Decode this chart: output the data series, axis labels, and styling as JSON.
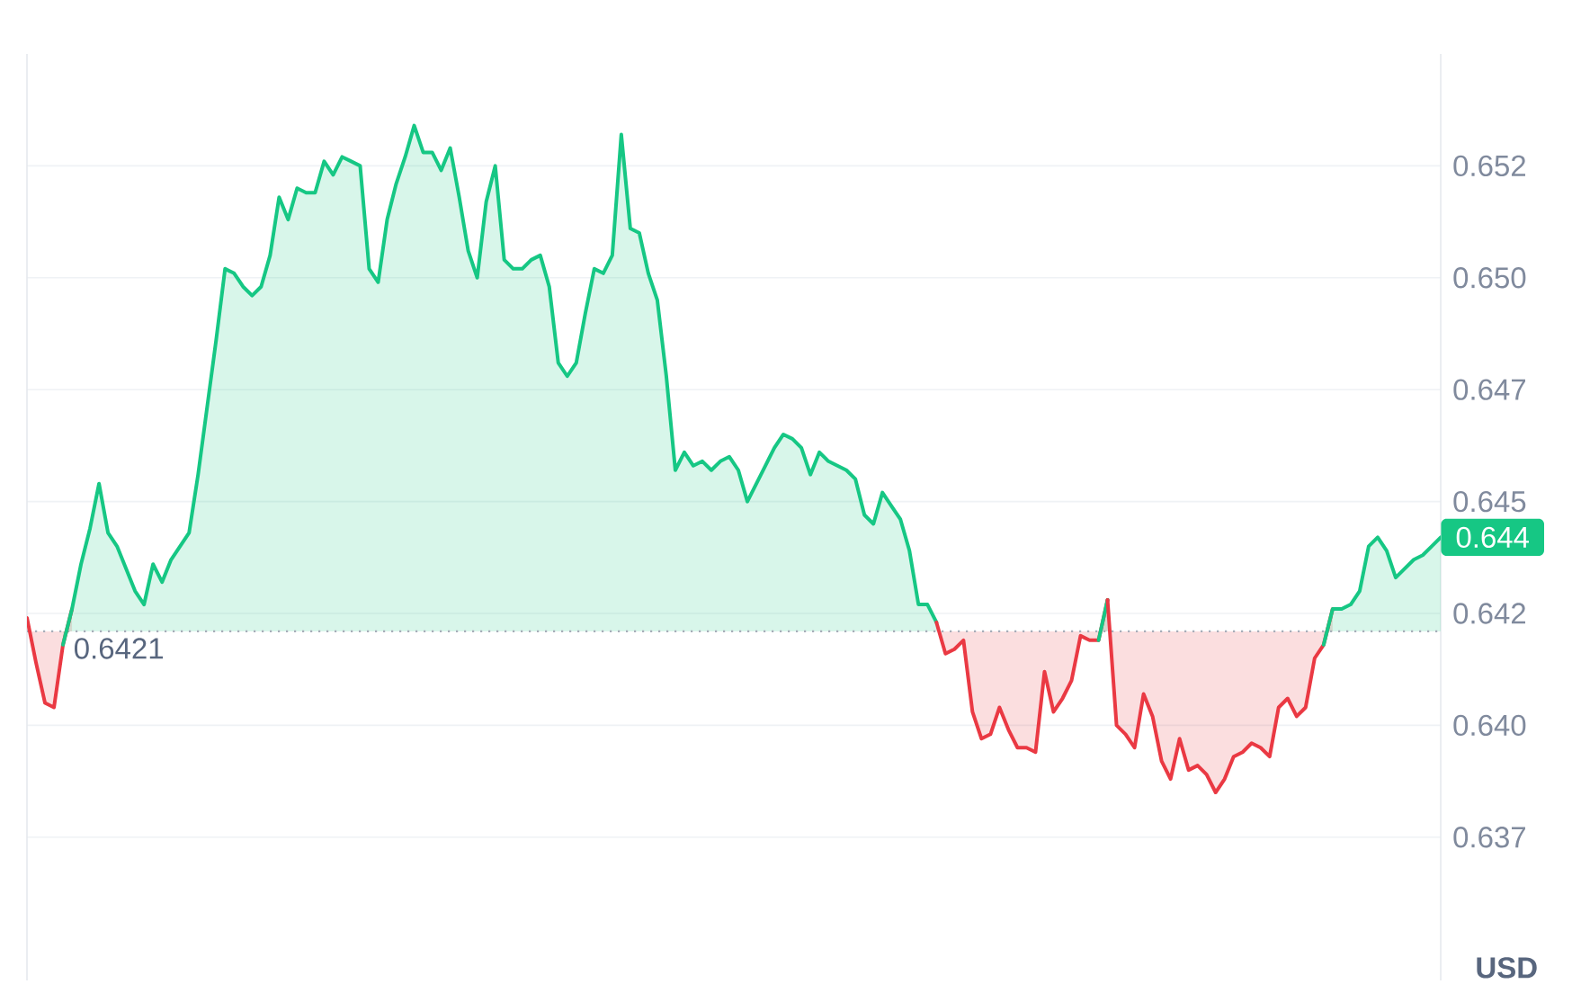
{
  "chart_data": {
    "type": "area",
    "categories": [
      null,
      null,
      null,
      null,
      null,
      null,
      null,
      null,
      null,
      null,
      null,
      null,
      null,
      null,
      null,
      null,
      null,
      null,
      null,
      null,
      null,
      null,
      null,
      null,
      null,
      null,
      null,
      null,
      null,
      null,
      null,
      null,
      null,
      null,
      null,
      null,
      null,
      null,
      null,
      null,
      null,
      null,
      null,
      null,
      null,
      null,
      null,
      null,
      null,
      null,
      null,
      null,
      null,
      null,
      null,
      null,
      null,
      null,
      null,
      null,
      null,
      null,
      null,
      null,
      null,
      null,
      null,
      null,
      null,
      null,
      null,
      null,
      null,
      null,
      null,
      null,
      null,
      null,
      null,
      null,
      null,
      null,
      null,
      null,
      null,
      null,
      null,
      null,
      null,
      null,
      null,
      null,
      null,
      null,
      null,
      null,
      null,
      null,
      null,
      null,
      null,
      null,
      null,
      null,
      null,
      null,
      null,
      null,
      null,
      null,
      null,
      null,
      null,
      null,
      null,
      null,
      null,
      null,
      null,
      null,
      null,
      null,
      null,
      null,
      null,
      null,
      null,
      null,
      null,
      null,
      null,
      null,
      null,
      null,
      null,
      null,
      null,
      null,
      null,
      null,
      null,
      null,
      null,
      null,
      null,
      null,
      null,
      null,
      null,
      null,
      null,
      null,
      null,
      null,
      null,
      null,
      null,
      null
    ],
    "series": [
      {
        "color": "#ea3943",
        "values": [
          0.6424,
          0.6414,
          0.6405,
          0.6404,
          0.6418,
          0.6426,
          null,
          null,
          null,
          null,
          null,
          null,
          null,
          null,
          null,
          null,
          null,
          null,
          null,
          null,
          null,
          null,
          null,
          null,
          null,
          null,
          null,
          null,
          null,
          null,
          null,
          null,
          null,
          null,
          null,
          null,
          null,
          null,
          null,
          null,
          null,
          null,
          null,
          null,
          null,
          null,
          null,
          null,
          null,
          null,
          null,
          null,
          null,
          null,
          null,
          null,
          null,
          null,
          null,
          null,
          null,
          null,
          null,
          null,
          null,
          null,
          null,
          null,
          null,
          null,
          null,
          null,
          null,
          null,
          null,
          null,
          null,
          null,
          null,
          null,
          null,
          null,
          null,
          null,
          null,
          null,
          null,
          null,
          null,
          null,
          null,
          null,
          null,
          null,
          null,
          null,
          null,
          null,
          null,
          null,
          null,
          null,
          null,
          null,
          null,
          null,
          null,
          null,
          null,
          null,
          null,
          null,
          null,
          null,
          null,
          null,
          null,
          null,
          null,
          null,
          null,
          null,
          null,
          null,
          null,
          null,
          null,
          null,
          null,
          null,
          null,
          null,
          null,
          null,
          null,
          null,
          null,
          null,
          null,
          null,
          null,
          null,
          null,
          null,
          null,
          null,
          null,
          null,
          null,
          null,
          null,
          null,
          null,
          null,
          null,
          null,
          null,
          null
        ]
      },
      {
        "color": "#16c784",
        "values": [
          null,
          null,
          null,
          null,
          0.6418,
          0.6426,
          0.6436,
          0.6444,
          0.6454,
          0.6443,
          0.644,
          0.6435,
          0.643,
          0.6427,
          0.6436,
          0.6432,
          0.6437,
          0.644,
          0.6443,
          0.6456,
          0.6471,
          0.6486,
          0.6502,
          0.6501,
          0.6498,
          0.6496,
          0.6498,
          0.6505,
          0.6518,
          0.6513,
          0.652,
          0.6519,
          0.6519,
          0.6526,
          0.6523,
          0.6527,
          0.6526,
          0.6525,
          0.6502,
          0.6499,
          0.6513,
          0.6521,
          0.6527,
          0.6534,
          0.6528,
          0.6528,
          0.6524,
          0.6529,
          0.6518,
          0.6506,
          0.65,
          0.6517,
          0.6525,
          0.6504,
          0.6502,
          0.6502,
          0.6504,
          0.6505,
          0.6498,
          0.6481,
          0.6478,
          0.6481,
          0.6492,
          0.6502,
          0.6501,
          0.6505,
          0.6532,
          0.6511,
          0.651,
          0.6501,
          0.6495,
          0.6478,
          0.6457,
          0.6461,
          0.6458,
          0.6459,
          0.6457,
          0.6459,
          0.646,
          0.6457,
          0.645,
          0.6454,
          0.6458,
          0.6462,
          0.6465,
          0.6464,
          0.6462,
          0.6456,
          0.6461,
          0.6459,
          0.6458,
          0.6457,
          0.6455,
          0.6447,
          0.6445,
          0.6452,
          0.6449,
          0.6446,
          0.6439,
          0.6427,
          0.6427,
          0.6423,
          null,
          null,
          null,
          null,
          null,
          null,
          null,
          null,
          null,
          null,
          null,
          null,
          null,
          null,
          null,
          null,
          null,
          null,
          null,
          null,
          null,
          null,
          null,
          null,
          null,
          null,
          null,
          null,
          null,
          null,
          null,
          null,
          null,
          null,
          null,
          null,
          null,
          null,
          null,
          null,
          null,
          null,
          null,
          null,
          null,
          null,
          null,
          null,
          null,
          null,
          null,
          null,
          null,
          null,
          null,
          null
        ]
      },
      {
        "color": "#ea3943",
        "values": [
          null,
          null,
          null,
          null,
          null,
          null,
          null,
          null,
          null,
          null,
          null,
          null,
          null,
          null,
          null,
          null,
          null,
          null,
          null,
          null,
          null,
          null,
          null,
          null,
          null,
          null,
          null,
          null,
          null,
          null,
          null,
          null,
          null,
          null,
          null,
          null,
          null,
          null,
          null,
          null,
          null,
          null,
          null,
          null,
          null,
          null,
          null,
          null,
          null,
          null,
          null,
          null,
          null,
          null,
          null,
          null,
          null,
          null,
          null,
          null,
          null,
          null,
          null,
          null,
          null,
          null,
          null,
          null,
          null,
          null,
          null,
          null,
          null,
          null,
          null,
          null,
          null,
          null,
          null,
          null,
          null,
          null,
          null,
          null,
          null,
          null,
          null,
          null,
          null,
          null,
          null,
          null,
          null,
          null,
          null,
          null,
          null,
          null,
          null,
          null,
          null,
          0.6423,
          0.6416,
          0.6417,
          0.6419,
          0.6403,
          0.6397,
          0.6398,
          0.6404,
          0.6399,
          0.6395,
          0.6395,
          0.6394,
          0.6412,
          0.6403,
          0.6406,
          0.641,
          0.642,
          0.6419,
          0.6419,
          0.6428,
          null,
          null,
          null,
          null,
          null,
          null,
          null,
          null,
          null,
          null,
          null,
          null,
          null,
          null,
          null,
          null,
          null,
          null,
          null,
          null,
          null,
          null,
          null,
          null,
          null,
          null,
          null,
          null,
          null,
          null,
          null,
          null,
          null,
          null,
          null,
          null,
          null
        ]
      },
      {
        "color": "#16c784",
        "values": [
          null,
          null,
          null,
          null,
          null,
          null,
          null,
          null,
          null,
          null,
          null,
          null,
          null,
          null,
          null,
          null,
          null,
          null,
          null,
          null,
          null,
          null,
          null,
          null,
          null,
          null,
          null,
          null,
          null,
          null,
          null,
          null,
          null,
          null,
          null,
          null,
          null,
          null,
          null,
          null,
          null,
          null,
          null,
          null,
          null,
          null,
          null,
          null,
          null,
          null,
          null,
          null,
          null,
          null,
          null,
          null,
          null,
          null,
          null,
          null,
          null,
          null,
          null,
          null,
          null,
          null,
          null,
          null,
          null,
          null,
          null,
          null,
          null,
          null,
          null,
          null,
          null,
          null,
          null,
          null,
          null,
          null,
          null,
          null,
          null,
          null,
          null,
          null,
          null,
          null,
          null,
          null,
          null,
          null,
          null,
          null,
          null,
          null,
          null,
          null,
          null,
          null,
          null,
          null,
          null,
          null,
          null,
          null,
          null,
          null,
          null,
          null,
          null,
          null,
          null,
          null,
          null,
          null,
          null,
          0.6419,
          0.6428,
          null,
          null,
          null,
          null,
          null,
          null,
          null,
          null,
          null,
          null,
          null,
          null,
          null,
          null,
          null,
          null,
          null,
          null,
          null,
          null,
          null,
          null,
          null,
          null,
          null,
          null,
          null,
          null,
          null,
          null,
          null,
          null,
          null,
          null,
          null,
          null,
          null
        ]
      },
      {
        "color": "#ea3943",
        "values": [
          null,
          null,
          null,
          null,
          null,
          null,
          null,
          null,
          null,
          null,
          null,
          null,
          null,
          null,
          null,
          null,
          null,
          null,
          null,
          null,
          null,
          null,
          null,
          null,
          null,
          null,
          null,
          null,
          null,
          null,
          null,
          null,
          null,
          null,
          null,
          null,
          null,
          null,
          null,
          null,
          null,
          null,
          null,
          null,
          null,
          null,
          null,
          null,
          null,
          null,
          null,
          null,
          null,
          null,
          null,
          null,
          null,
          null,
          null,
          null,
          null,
          null,
          null,
          null,
          null,
          null,
          null,
          null,
          null,
          null,
          null,
          null,
          null,
          null,
          null,
          null,
          null,
          null,
          null,
          null,
          null,
          null,
          null,
          null,
          null,
          null,
          null,
          null,
          null,
          null,
          null,
          null,
          null,
          null,
          null,
          null,
          null,
          null,
          null,
          null,
          null,
          null,
          null,
          null,
          null,
          null,
          null,
          null,
          null,
          null,
          null,
          null,
          null,
          null,
          null,
          null,
          null,
          null,
          null,
          null,
          0.6428,
          0.64,
          0.6398,
          0.6395,
          0.6407,
          0.6402,
          0.6392,
          0.6388,
          0.6397,
          0.639,
          0.6391,
          0.6389,
          0.6385,
          0.6388,
          0.6393,
          0.6394,
          0.6396,
          0.6395,
          0.6393,
          0.6404,
          0.6406,
          0.6402,
          0.6404,
          0.6415,
          0.6418,
          0.6426,
          null,
          null,
          null,
          null,
          null,
          null,
          null,
          null,
          null,
          null,
          null,
          null
        ]
      },
      {
        "color": "#16c784",
        "values": [
          null,
          null,
          null,
          null,
          null,
          null,
          null,
          null,
          null,
          null,
          null,
          null,
          null,
          null,
          null,
          null,
          null,
          null,
          null,
          null,
          null,
          null,
          null,
          null,
          null,
          null,
          null,
          null,
          null,
          null,
          null,
          null,
          null,
          null,
          null,
          null,
          null,
          null,
          null,
          null,
          null,
          null,
          null,
          null,
          null,
          null,
          null,
          null,
          null,
          null,
          null,
          null,
          null,
          null,
          null,
          null,
          null,
          null,
          null,
          null,
          null,
          null,
          null,
          null,
          null,
          null,
          null,
          null,
          null,
          null,
          null,
          null,
          null,
          null,
          null,
          null,
          null,
          null,
          null,
          null,
          null,
          null,
          null,
          null,
          null,
          null,
          null,
          null,
          null,
          null,
          null,
          null,
          null,
          null,
          null,
          null,
          null,
          null,
          null,
          null,
          null,
          null,
          null,
          null,
          null,
          null,
          null,
          null,
          null,
          null,
          null,
          null,
          null,
          null,
          null,
          null,
          null,
          null,
          null,
          null,
          null,
          null,
          null,
          null,
          null,
          null,
          null,
          null,
          null,
          null,
          null,
          null,
          null,
          null,
          null,
          null,
          null,
          null,
          null,
          null,
          null,
          null,
          null,
          null,
          0.6418,
          0.6426,
          0.6426,
          0.6427,
          0.643,
          0.644,
          0.6442,
          0.6439,
          0.6433,
          0.6435,
          0.6437,
          0.6438,
          0.644,
          0.6442
        ]
      }
    ],
    "ylabel": "USD",
    "ylim": [
      0.6343,
      0.655
    ],
    "yticks": [
      {
        "value": 0.6375,
        "label": "0.637"
      },
      {
        "value": 0.64,
        "label": "0.640"
      },
      {
        "value": 0.6425,
        "label": "0.642"
      },
      0.645,
      {
        "value": 0.6475,
        "label": "0.647"
      },
      {
        "value": 0.65,
        "label": "0.650"
      },
      {
        "value": 0.6525,
        "label": "0.652"
      }
    ],
    "ref_lines": [
      {
        "axis": "y",
        "value": 0.6421,
        "label": "0.6421",
        "line_style": "dotted",
        "color": "#a6adb8"
      }
    ],
    "annotations": [
      "0.644"
    ],
    "grid": "y",
    "tick_labels": "y"
  }
}
